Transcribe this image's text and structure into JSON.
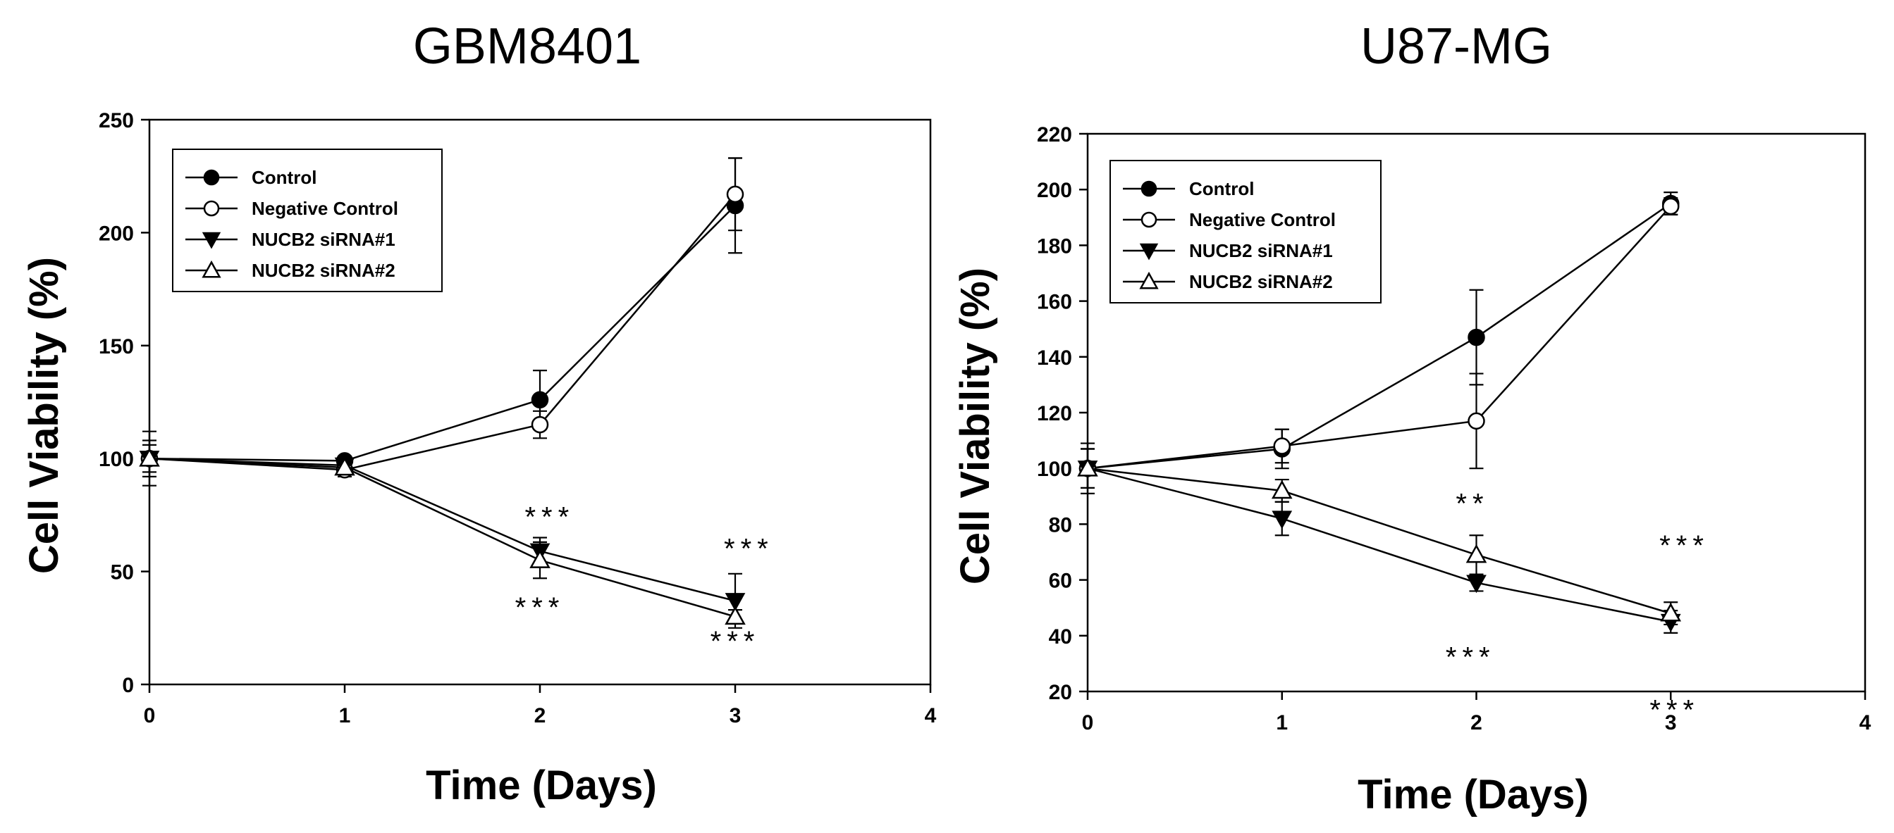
{
  "chart_data": [
    {
      "type": "line",
      "title": "GBM8401",
      "xlabel": "Time (Days)",
      "ylabel": "Cell Viability (%)",
      "xlim": [
        0,
        4
      ],
      "ylim": [
        0,
        250
      ],
      "xticks": [
        0,
        1,
        2,
        3,
        4
      ],
      "yticks": [
        0,
        50,
        100,
        150,
        200,
        250
      ],
      "grid": false,
      "legend_position": "top-left",
      "x": [
        0,
        1,
        2,
        3
      ],
      "series": [
        {
          "name": "Control",
          "marker": "circle-filled",
          "values": [
            100,
            99,
            126,
            212
          ],
          "errors": [
            12,
            2,
            13,
            21
          ]
        },
        {
          "name": "Negative Control",
          "marker": "circle-open",
          "values": [
            100,
            95,
            115,
            217
          ],
          "errors": [
            8,
            3,
            6,
            16
          ]
        },
        {
          "name": "NUCB2 siRNA#1",
          "marker": "triangle-down-filled",
          "values": [
            100,
            97,
            59,
            37
          ],
          "errors": [
            6,
            3,
            6,
            12
          ]
        },
        {
          "name": "NUCB2 siRNA#2",
          "marker": "triangle-up-open",
          "values": [
            100,
            96,
            55,
            30
          ],
          "errors": [
            6,
            3,
            8,
            3
          ]
        }
      ],
      "annotations": [
        {
          "text": "***",
          "x": 2.05,
          "y": 70
        },
        {
          "text": "***",
          "x": 2.0,
          "y": 30
        },
        {
          "text": "***",
          "x": 3.07,
          "y": 56
        },
        {
          "text": "***",
          "x": 3.0,
          "y": 15
        }
      ]
    },
    {
      "type": "line",
      "title": "U87-MG",
      "xlabel": "Time (Days)",
      "ylabel": "Cell Viability (%)",
      "xlim": [
        0,
        4
      ],
      "ylim": [
        20,
        220
      ],
      "xticks": [
        0,
        1,
        2,
        3,
        4
      ],
      "yticks": [
        20,
        40,
        60,
        80,
        100,
        120,
        140,
        160,
        180,
        200,
        220
      ],
      "grid": false,
      "legend_position": "top-left",
      "x": [
        0,
        1,
        2,
        3
      ],
      "series": [
        {
          "name": "Control",
          "marker": "circle-filled",
          "values": [
            100,
            107,
            147,
            195
          ],
          "errors": [
            9,
            7,
            17,
            4
          ]
        },
        {
          "name": "Negative Control",
          "marker": "circle-open",
          "values": [
            100,
            108,
            117,
            194
          ],
          "errors": [
            7,
            6,
            17,
            3
          ]
        },
        {
          "name": "NUCB2 siRNA#1",
          "marker": "triangle-down-filled",
          "values": [
            100,
            82,
            59,
            45
          ],
          "errors": [
            7,
            6,
            3,
            4
          ]
        },
        {
          "name": "NUCB2 siRNA#2",
          "marker": "triangle-up-open",
          "values": [
            100,
            92,
            69,
            48
          ],
          "errors": [
            7,
            4,
            7,
            4
          ]
        }
      ],
      "annotations": [
        {
          "text": "**",
          "x": 1.98,
          "y": 84
        },
        {
          "text": "***",
          "x": 3.07,
          "y": 69
        },
        {
          "text": "***",
          "x": 1.97,
          "y": 29
        },
        {
          "text": "***",
          "x": 3.02,
          "y": 10
        }
      ]
    }
  ]
}
